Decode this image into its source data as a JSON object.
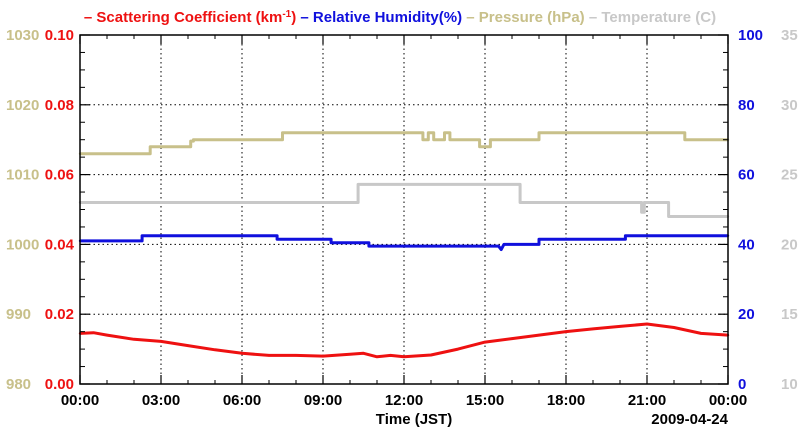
{
  "chart_data": {
    "type": "line",
    "xlabel": "Time (JST)",
    "date_label": "2009-04-24",
    "x_ticks": [
      "00:00",
      "03:00",
      "06:00",
      "09:00",
      "12:00",
      "15:00",
      "18:00",
      "21:00",
      "00:00"
    ],
    "x_range": [
      0,
      24
    ],
    "grid": true,
    "legend": {
      "placement": "top",
      "items": [
        {
          "prefix": "– ",
          "text": "Scattering Coefficient (km",
          "sup": "-1",
          "suffix": ")",
          "color": "#ee1111"
        },
        {
          "prefix": "– ",
          "text": "Relative Humidity(%)",
          "sup": "",
          "suffix": "",
          "color": "#1010dd"
        },
        {
          "prefix": "– ",
          "text": "Pressure (hPa)",
          "sup": "",
          "suffix": "",
          "color": "#c8c08a"
        },
        {
          "prefix": "– ",
          "text": "Temperature (C)",
          "sup": "",
          "suffix": "",
          "color": "#c8c8c8"
        }
      ]
    },
    "axes": {
      "pressure": {
        "side": "left-outer",
        "range": [
          980,
          1030
        ],
        "ticks": [
          "980",
          "990",
          "1000",
          "1010",
          "1020",
          "1030"
        ],
        "color": "#c8c08a"
      },
      "scattering": {
        "side": "left-inner",
        "range": [
          0,
          0.1
        ],
        "ticks": [
          "0.00",
          "0.02",
          "0.04",
          "0.06",
          "0.08",
          "0.10"
        ],
        "color": "#ee1111"
      },
      "humidity": {
        "side": "right-inner",
        "range": [
          0,
          100
        ],
        "ticks": [
          "0",
          "20",
          "40",
          "60",
          "80",
          "100"
        ],
        "color": "#1010dd"
      },
      "temperature": {
        "side": "right-outer",
        "range": [
          10,
          35
        ],
        "ticks": [
          "10",
          "15",
          "20",
          "25",
          "30",
          "35"
        ],
        "color": "#c8c8c8"
      }
    },
    "series": [
      {
        "name": "Scattering Coefficient (km-1)",
        "axis": "scattering",
        "color": "#ee1111",
        "x": [
          0,
          0.5,
          1,
          2,
          3,
          4,
          5,
          6,
          7,
          8,
          9,
          10,
          10.5,
          11,
          11.5,
          12,
          13,
          14,
          15,
          16,
          17,
          18,
          19,
          20,
          21,
          22,
          23,
          24
        ],
        "y": [
          0.0145,
          0.0147,
          0.014,
          0.0128,
          0.0122,
          0.011,
          0.0098,
          0.0088,
          0.0082,
          0.0082,
          0.008,
          0.0085,
          0.0088,
          0.0078,
          0.0082,
          0.0078,
          0.0083,
          0.01,
          0.012,
          0.013,
          0.014,
          0.015,
          0.0158,
          0.0165,
          0.0172,
          0.0162,
          0.0145,
          0.014
        ]
      },
      {
        "name": "Relative Humidity(%)",
        "axis": "humidity",
        "color": "#1010dd",
        "x": [
          0,
          2.3,
          2.3,
          7.3,
          7.3,
          9.3,
          9.3,
          10.7,
          10.7,
          15.5,
          15.6,
          15.7,
          17,
          17,
          20.2,
          20.2,
          24
        ],
        "y": [
          41,
          41,
          42.5,
          42.5,
          41.5,
          41.5,
          40.5,
          40.5,
          39.5,
          39.5,
          38.5,
          40,
          40,
          41.5,
          41.5,
          42.5,
          42.5
        ]
      },
      {
        "name": "Pressure (hPa)",
        "axis": "pressure",
        "color": "#c8c08a",
        "x": [
          0,
          2.6,
          2.6,
          4.1,
          4.1,
          4.2,
          4.2,
          7.5,
          7.5,
          12.7,
          12.7,
          12.9,
          12.9,
          13.1,
          13.1,
          13.5,
          13.5,
          13.7,
          13.7,
          14.8,
          14.8,
          15.2,
          15.2,
          16.2,
          16.2,
          17,
          17,
          22.4,
          22.4,
          24
        ],
        "y": [
          1013,
          1013,
          1014,
          1014,
          1014.8,
          1014.8,
          1015,
          1015,
          1016,
          1016,
          1015,
          1015,
          1016,
          1016,
          1015,
          1015,
          1016,
          1016,
          1015,
          1015,
          1014,
          1014,
          1015,
          1015,
          1015,
          1015,
          1016,
          1016,
          1015,
          1015
        ]
      },
      {
        "name": "Temperature (C)",
        "axis": "temperature",
        "color": "#c8c8c8",
        "x": [
          0,
          10.3,
          10.3,
          16.3,
          16.3,
          20.8,
          20.8,
          20.9,
          20.9,
          21.8,
          21.8,
          24
        ],
        "y": [
          23,
          23,
          24.3,
          24.3,
          23,
          23,
          22.3,
          22.3,
          23,
          23,
          22,
          22
        ]
      }
    ]
  }
}
